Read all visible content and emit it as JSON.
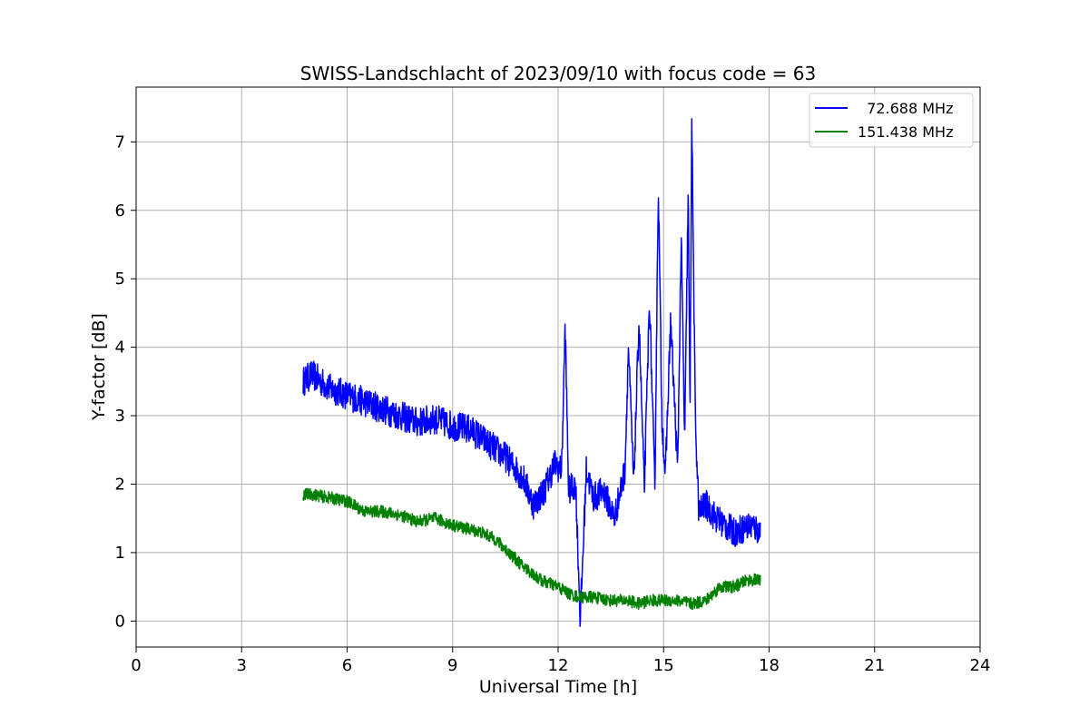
{
  "chart_data": {
    "type": "line",
    "title": "SWISS-Landschlacht of 2023/09/10 with focus code = 63",
    "xlabel": "Universal Time [h]",
    "ylabel": "Y-factor [dB]",
    "xlim": [
      0,
      24
    ],
    "ylim": [
      -0.38,
      7.8
    ],
    "xticks": [
      "0",
      "3",
      "6",
      "9",
      "12",
      "15",
      "18",
      "21",
      "24"
    ],
    "yticks": [
      "0",
      "1",
      "2",
      "3",
      "4",
      "5",
      "6",
      "7"
    ],
    "grid": true,
    "legend_position": "top-right",
    "series": [
      {
        "name": "  72.688 MHz",
        "color": "#0000ff",
        "x": [
          4.75,
          5.0,
          5.5,
          6.0,
          6.5,
          7.0,
          7.5,
          8.0,
          8.5,
          9.0,
          9.5,
          10.0,
          10.5,
          11.0,
          11.3,
          11.6,
          11.9,
          12.1,
          12.2,
          12.3,
          12.5,
          12.63,
          12.8,
          13.0,
          13.3,
          13.6,
          13.9,
          14.0,
          14.15,
          14.3,
          14.45,
          14.6,
          14.75,
          14.85,
          14.95,
          15.05,
          15.2,
          15.4,
          15.5,
          15.6,
          15.7,
          15.75,
          15.8,
          15.9,
          16.0,
          16.2,
          16.5,
          17.0,
          17.5,
          17.75
        ],
        "y": [
          3.5,
          3.6,
          3.4,
          3.3,
          3.2,
          3.1,
          3.0,
          2.9,
          2.95,
          2.85,
          2.8,
          2.6,
          2.4,
          2.1,
          1.7,
          1.9,
          2.3,
          2.2,
          4.3,
          1.9,
          2.0,
          0.0,
          2.2,
          1.8,
          1.9,
          1.5,
          2.2,
          4.0,
          2.0,
          4.4,
          1.9,
          4.7,
          1.9,
          6.4,
          3.0,
          2.1,
          4.4,
          2.2,
          5.6,
          2.6,
          6.3,
          3.0,
          7.4,
          3.0,
          1.6,
          1.7,
          1.5,
          1.3,
          1.4,
          1.3
        ],
        "amplitude": 0.22
      },
      {
        "name": "151.438 MHz",
        "color": "#008000",
        "x": [
          4.75,
          5.0,
          5.5,
          6.0,
          6.5,
          7.0,
          7.5,
          8.0,
          8.5,
          9.0,
          9.4,
          9.8,
          10.2,
          10.6,
          11.0,
          11.5,
          12.0,
          12.3,
          12.6,
          13.0,
          13.5,
          14.0,
          14.3,
          14.6,
          15.0,
          15.4,
          15.8,
          16.2,
          16.4,
          16.6,
          17.0,
          17.4,
          17.75
        ],
        "y": [
          1.85,
          1.85,
          1.8,
          1.75,
          1.6,
          1.6,
          1.55,
          1.45,
          1.5,
          1.4,
          1.35,
          1.3,
          1.2,
          1.0,
          0.8,
          0.6,
          0.5,
          0.4,
          0.35,
          0.35,
          0.3,
          0.3,
          0.25,
          0.3,
          0.3,
          0.3,
          0.25,
          0.3,
          0.4,
          0.5,
          0.5,
          0.6,
          0.6
        ],
        "amplitude": 0.09
      }
    ]
  }
}
